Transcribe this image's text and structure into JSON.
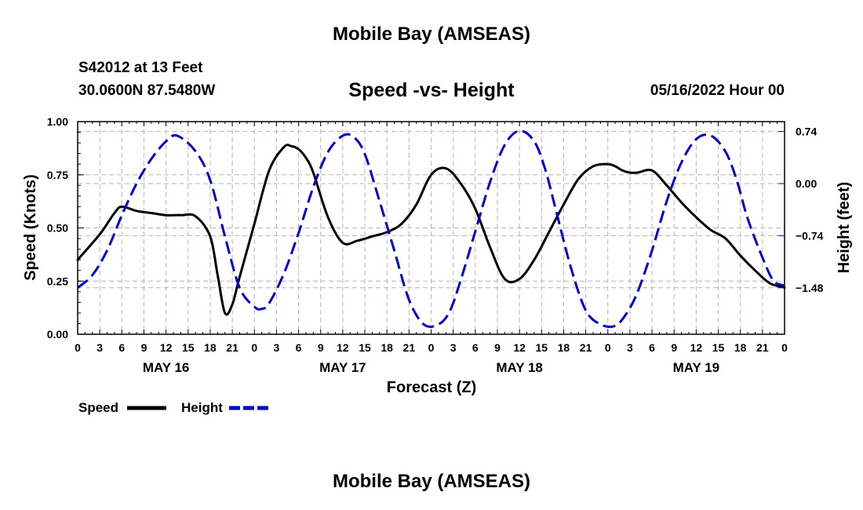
{
  "page": {
    "main_title": "Mobile Bay (AMSEAS)",
    "station_line": "S42012 at 13 Feet",
    "coords_line": "30.0600N  87.5480W",
    "datetime": "05/16/2022 Hour 00",
    "bottom_title": "Mobile Bay (AMSEAS)"
  },
  "chart_data": {
    "type": "line",
    "title": "Speed -vs- Height",
    "xlabel": "Forecast (Z)",
    "ylabel": "Speed (Knots)",
    "y2label": "Height (feet)",
    "xlim": [
      0,
      96
    ],
    "ylim": [
      0,
      1.0
    ],
    "y2lim": [
      -2.14,
      0.88
    ],
    "x_ticks": [
      0,
      3,
      6,
      9,
      12,
      15,
      18,
      21,
      24,
      27,
      30,
      33,
      36,
      39,
      42,
      45,
      48,
      51,
      54,
      57,
      60,
      63,
      66,
      69,
      72,
      75,
      78,
      81,
      84,
      87,
      90,
      93,
      96
    ],
    "x_tick_labels": [
      "0",
      "3",
      "6",
      "9",
      "12",
      "15",
      "18",
      "21",
      "0",
      "3",
      "6",
      "9",
      "12",
      "15",
      "18",
      "21",
      "0",
      "3",
      "6",
      "9",
      "12",
      "15",
      "18",
      "21",
      "0",
      "3",
      "6",
      "9",
      "12",
      "15",
      "18",
      "21",
      "0"
    ],
    "day_labels": [
      {
        "x": 12,
        "label": "MAY 16"
      },
      {
        "x": 36,
        "label": "MAY 17"
      },
      {
        "x": 60,
        "label": "MAY 18"
      },
      {
        "x": 84,
        "label": "MAY 19"
      }
    ],
    "y_ticks": [
      0.0,
      0.25,
      0.5,
      0.75,
      1.0
    ],
    "y_tick_labels": [
      "0.00",
      "0.25",
      "0.50",
      "0.75",
      "1.00"
    ],
    "y2_ticks": [
      0.74,
      0.0,
      -0.74,
      -1.48
    ],
    "y2_tick_labels": [
      "0.74",
      "0.00",
      "−0.74",
      "−1.48"
    ],
    "grid": true,
    "series": [
      {
        "name": "Speed",
        "axis": "left",
        "color": "#000000",
        "dash": "solid",
        "x": [
          0,
          3,
          5,
          6,
          8,
          10,
          12,
          14,
          16,
          18,
          19,
          20,
          21,
          22,
          24,
          26,
          28,
          29,
          30,
          31,
          32,
          34,
          36,
          38,
          40,
          42,
          44,
          46,
          48,
          50,
          52,
          54,
          56,
          58,
          60,
          62,
          64,
          66,
          68,
          70,
          72,
          73,
          74,
          75,
          76,
          78,
          80,
          82,
          84,
          86,
          88,
          90,
          92,
          94,
          96
        ],
        "values": [
          0.35,
          0.47,
          0.57,
          0.6,
          0.58,
          0.57,
          0.56,
          0.56,
          0.555,
          0.46,
          0.28,
          0.1,
          0.14,
          0.27,
          0.52,
          0.77,
          0.88,
          0.885,
          0.87,
          0.83,
          0.76,
          0.55,
          0.43,
          0.44,
          0.46,
          0.48,
          0.52,
          0.61,
          0.75,
          0.78,
          0.71,
          0.59,
          0.41,
          0.26,
          0.26,
          0.35,
          0.48,
          0.61,
          0.73,
          0.79,
          0.8,
          0.79,
          0.77,
          0.76,
          0.76,
          0.77,
          0.7,
          0.62,
          0.55,
          0.49,
          0.45,
          0.37,
          0.3,
          0.24,
          0.22
        ]
      },
      {
        "name": "Height",
        "axis": "right",
        "color": "#0000cc",
        "dash": "dashed",
        "x": [
          0,
          2,
          4,
          6,
          8,
          10,
          12,
          13.5,
          16,
          18,
          20,
          22,
          24,
          25,
          26,
          28,
          30,
          32,
          34,
          36,
          37.5,
          39,
          41,
          43,
          45,
          47,
          49,
          50.5,
          52,
          54,
          56,
          58,
          60,
          62,
          63.5,
          65,
          67,
          69,
          71,
          73,
          74.5,
          76,
          78,
          80,
          82,
          84,
          86,
          88,
          89.5,
          91,
          93,
          94.5,
          96
        ],
        "values": [
          -1.48,
          -1.3,
          -0.95,
          -0.45,
          0.0,
          0.35,
          0.6,
          0.68,
          0.46,
          0.05,
          -0.75,
          -1.48,
          -1.75,
          -1.78,
          -1.7,
          -1.28,
          -0.7,
          -0.05,
          0.45,
          0.68,
          0.66,
          0.42,
          -0.25,
          -0.95,
          -1.65,
          -2.0,
          -2.0,
          -1.82,
          -1.38,
          -0.68,
          0.02,
          0.55,
          0.75,
          0.6,
          0.2,
          -0.4,
          -1.2,
          -1.8,
          -2.0,
          -2.02,
          -1.85,
          -1.55,
          -0.95,
          -0.25,
          0.3,
          0.63,
          0.68,
          0.45,
          0.05,
          -0.5,
          -1.05,
          -1.38,
          -1.45
        ]
      }
    ],
    "legend": [
      {
        "label": "Speed",
        "color": "#000000",
        "dash": "solid"
      },
      {
        "label": "Height",
        "color": "#0000cc",
        "dash": "dashed"
      }
    ]
  }
}
